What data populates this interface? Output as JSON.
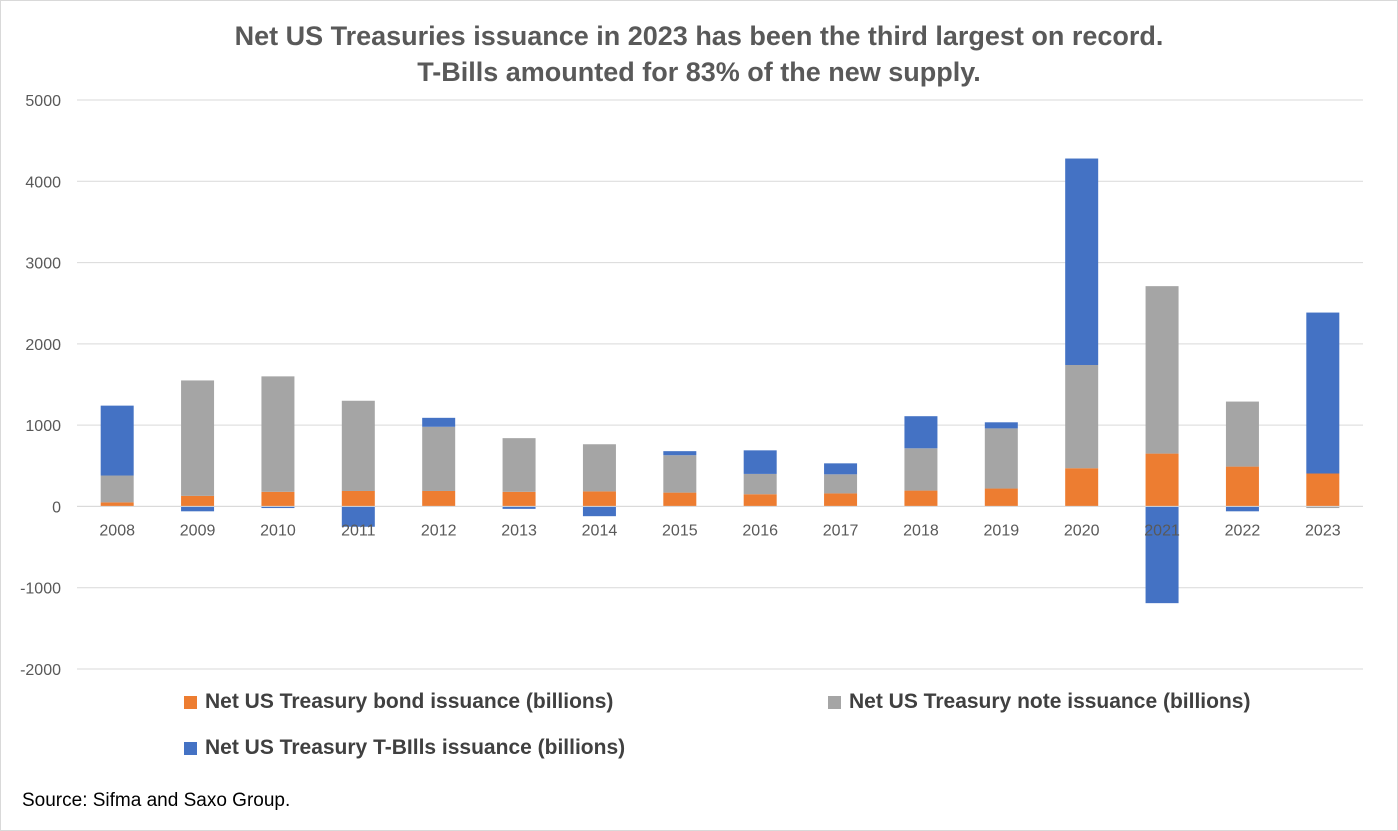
{
  "chart_data": {
    "type": "bar",
    "stacked": true,
    "title_line1": "Net US Treasuries issuance in 2023 has been the third largest on record.",
    "title_line2": "T-Bills amounted for 83% of the new supply.",
    "categories": [
      "2008",
      "2009",
      "2010",
      "2011",
      "2012",
      "2013",
      "2014",
      "2015",
      "2016",
      "2017",
      "2018",
      "2019",
      "2020",
      "2021",
      "2022",
      "2023"
    ],
    "series": [
      {
        "name": "Net US Treasury bond issuance (billions)",
        "color": "#ed7d31",
        "values": [
          50,
          130,
          180,
          190,
          190,
          180,
          185,
          170,
          150,
          160,
          195,
          220,
          470,
          650,
          490,
          405
        ]
      },
      {
        "name": "Net US Treasury note issuance (billions)",
        "color": "#a5a5a5",
        "values": [
          330,
          1420,
          1420,
          1110,
          790,
          660,
          580,
          460,
          250,
          235,
          520,
          740,
          1270,
          2060,
          800,
          -20
        ]
      },
      {
        "name": "Net US Treasury T-BIlls issuance (billions)",
        "color": "#4472c4",
        "values": [
          860,
          -60,
          -20,
          -250,
          110,
          -30,
          -120,
          50,
          290,
          135,
          395,
          75,
          2540,
          -1190,
          -60,
          1980
        ]
      }
    ],
    "ylim": [
      -2000,
      5000
    ],
    "yticks": [
      -2000,
      -1000,
      0,
      1000,
      2000,
      3000,
      4000,
      5000
    ],
    "ytick_labels": [
      "-2000",
      "-1000",
      "0",
      "1000",
      "2000",
      "3000",
      "4000",
      "5000"
    ],
    "xlabel": "",
    "ylabel": "",
    "grid": true,
    "legend_position": "bottom"
  },
  "source": "Source: Sifma and Saxo Group."
}
